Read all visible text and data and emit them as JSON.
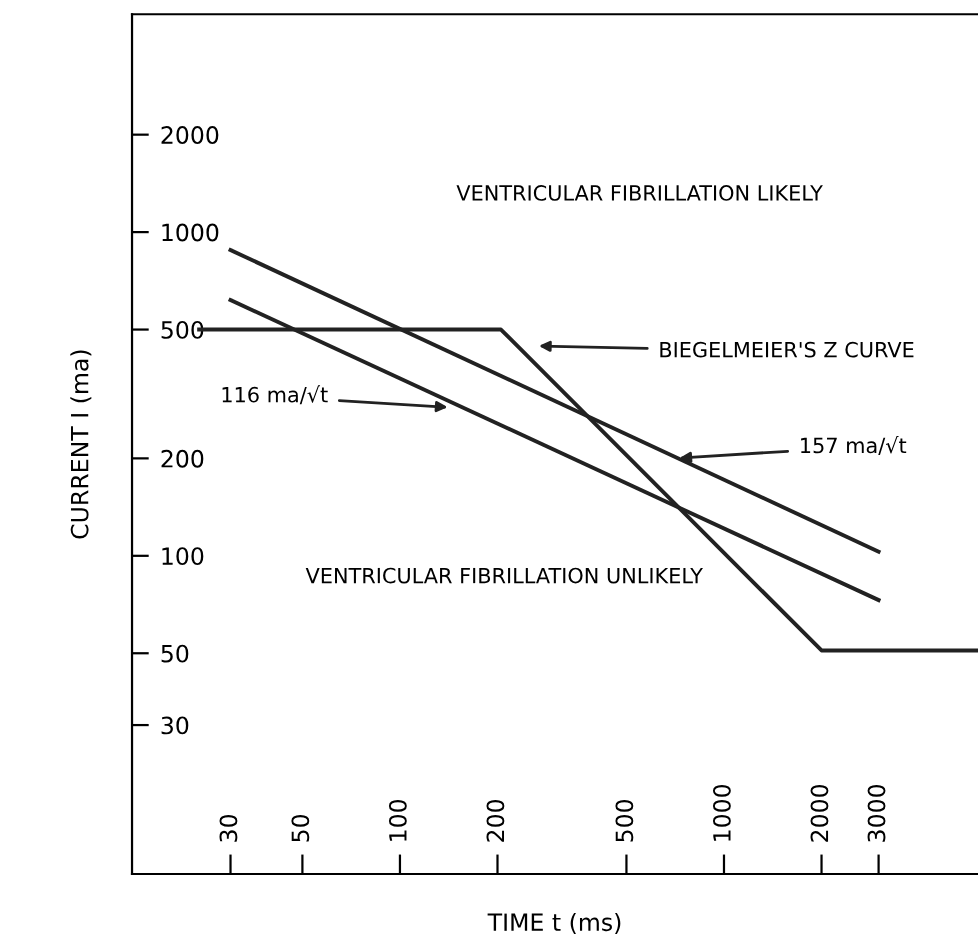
{
  "chart_data": {
    "type": "line",
    "xlabel": "TIME t (ms)",
    "ylabel": "CURRENT I (ma)",
    "log": "xy",
    "grid": false,
    "legend": false,
    "marker": "none",
    "line_style": "solid",
    "xlim": [
      14.9,
      6080
    ],
    "xticks": [
      30,
      50,
      100,
      200,
      500,
      1000,
      2000,
      3000
    ],
    "ylim": [
      10.4,
      4710
    ],
    "yticks": [
      30,
      50,
      100,
      200,
      500,
      1000,
      2000
    ],
    "series": [
      {
        "color": "#222222",
        "x": [
          30,
          3000
        ],
        "values": [
          880,
          103
        ]
      },
      {
        "color": "#222222",
        "x": [
          30,
          3000
        ],
        "values": [
          617,
          73
        ]
      },
      {
        "color": "#222222",
        "x": [
          24,
          205,
          2000,
          6000
        ],
        "values": [
          500,
          500,
          51,
          51
        ]
      }
    ],
    "annotations": [
      "VENTRICULAR FIBRILLATION LIKELY",
      "VENTRICULAR FIBRILLATION UNLIKELY",
      {
        "text": "BIEGELMEIER'S Z CURVE",
        "x": 258,
        "y": 445
      },
      {
        "text": "116 ma/√t",
        "x": 146,
        "y": 287
      },
      {
        "text": "157 ma/√t",
        "x": 700,
        "y": 200
      }
    ]
  }
}
